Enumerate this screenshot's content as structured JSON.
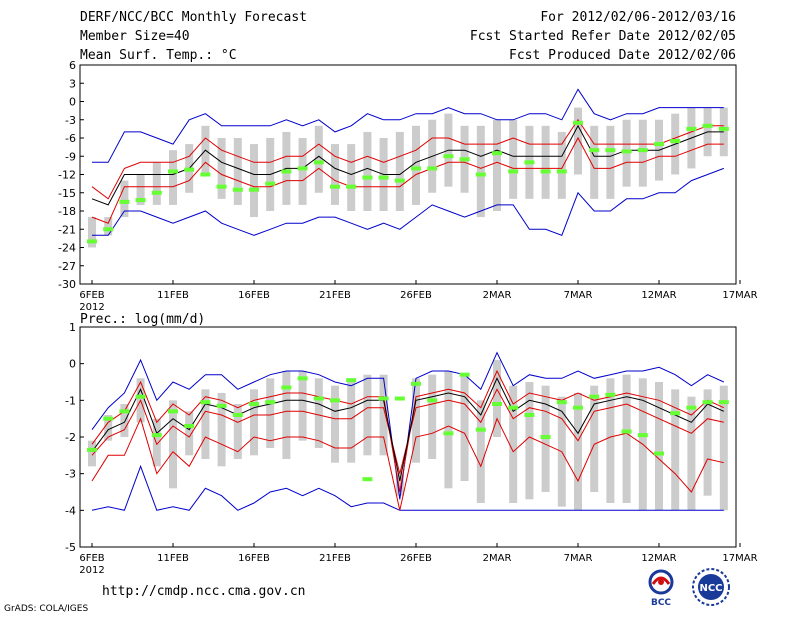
{
  "header": {
    "title": "DERF/NCC/BCC Monthly Forecast",
    "member_size": "Member Size=40",
    "variable": "Mean Surf. Temp.: °C",
    "period": "For 2012/02/06-2012/03/16",
    "started": "Fcst Started Refer Date 2012/02/05",
    "produced": "Fcst Produced Date 2012/02/06"
  },
  "footer": {
    "url": "http://cmdp.ncc.cma.gov.cn",
    "credit": "GrADS: COLA/IGES",
    "logo_bcc": "BCC",
    "logo_ncc": "NCC"
  },
  "colors": {
    "max_min": "#0000cc",
    "spread": "#e00000",
    "mean": "#000000",
    "observed": "#66ff33",
    "box": "#cccccc"
  },
  "chart_data": [
    {
      "type": "line",
      "title": "Mean Surf. Temp.: °C",
      "ylim": [
        -30,
        6
      ],
      "yticks": [
        -30,
        -27,
        -24,
        -21,
        -18,
        -15,
        -12,
        -9,
        -6,
        -3,
        0,
        3,
        6
      ],
      "xticks": [
        {
          "day": 0,
          "label": "6FEB",
          "sub": "2012"
        },
        {
          "day": 5,
          "label": "11FEB"
        },
        {
          "day": 10,
          "label": "16FEB"
        },
        {
          "day": 15,
          "label": "21FEB"
        },
        {
          "day": 20,
          "label": "26FEB"
        },
        {
          "day": 25,
          "label": "2MAR"
        },
        {
          "day": 30,
          "label": "7MAR"
        },
        {
          "day": 35,
          "label": "12MAR"
        },
        {
          "day": 40,
          "label": "17MAR"
        }
      ],
      "x": [
        0,
        1,
        2,
        3,
        4,
        5,
        6,
        7,
        8,
        9,
        10,
        11,
        12,
        13,
        14,
        15,
        16,
        17,
        18,
        19,
        20,
        21,
        22,
        23,
        24,
        25,
        26,
        27,
        28,
        29,
        30,
        31,
        32,
        33,
        34,
        35,
        36,
        37,
        38,
        39
      ],
      "series": [
        {
          "name": "max",
          "values": [
            -10,
            -10,
            -5,
            -5,
            -6,
            -7,
            -3,
            -2,
            -4,
            -4,
            -4,
            -4,
            -3,
            -4,
            -3,
            -5,
            -4,
            -2,
            -3,
            -3,
            -2,
            -2,
            -1,
            -2,
            -2,
            -3,
            -3,
            -2,
            -2,
            -3,
            2,
            -2,
            -3,
            -2,
            -2,
            -1,
            -1,
            -1,
            -1,
            -1
          ]
        },
        {
          "name": "upper",
          "values": [
            -14,
            -16,
            -11,
            -10,
            -10,
            -10,
            -9,
            -6,
            -8,
            -9,
            -10,
            -10,
            -9,
            -9,
            -7,
            -9,
            -10,
            -9,
            -10,
            -9,
            -8,
            -6,
            -6,
            -7,
            -7,
            -7,
            -6,
            -7,
            -7,
            -7,
            -3,
            -7,
            -7,
            -7,
            -7,
            -7,
            -6,
            -5,
            -4,
            -4
          ]
        },
        {
          "name": "mean",
          "values": [
            -16,
            -17,
            -12,
            -12,
            -12,
            -12,
            -11,
            -8,
            -10,
            -11,
            -12,
            -12,
            -11,
            -11,
            -9,
            -11,
            -12,
            -11,
            -12,
            -12,
            -10,
            -9,
            -8,
            -8,
            -9,
            -8,
            -9,
            -9,
            -9,
            -9,
            -4,
            -9,
            -9,
            -8,
            -8,
            -8,
            -7,
            -6,
            -5,
            -5
          ]
        },
        {
          "name": "lower",
          "values": [
            -19,
            -20,
            -14,
            -14,
            -14,
            -14,
            -13,
            -10,
            -12,
            -13,
            -14,
            -14,
            -13,
            -13,
            -11,
            -13,
            -14,
            -14,
            -14,
            -14,
            -12,
            -11,
            -10,
            -10,
            -11,
            -10,
            -11,
            -11,
            -11,
            -11,
            -6,
            -11,
            -11,
            -10,
            -10,
            -9,
            -9,
            -8,
            -7,
            -7
          ]
        },
        {
          "name": "min",
          "values": [
            -22,
            -22,
            -18,
            -18,
            -19,
            -20,
            -19,
            -18,
            -20,
            -21,
            -22,
            -21,
            -20,
            -20,
            -19,
            -19,
            -20,
            -21,
            -20,
            -21,
            -19,
            -17,
            -18,
            -19,
            -18,
            -17,
            -17,
            -21,
            -21,
            -22,
            -15,
            -18,
            -18,
            -16,
            -16,
            -15,
            -15,
            -13,
            -12,
            -11
          ]
        },
        {
          "name": "box_top",
          "values": [
            -19,
            -19,
            -13,
            -12,
            -10,
            -8,
            -7,
            -4,
            -6,
            -6,
            -7,
            -6,
            -5,
            -6,
            -4,
            -7,
            -7,
            -5,
            -6,
            -5,
            -4,
            -3,
            -2,
            -4,
            -4,
            -3,
            -3,
            -4,
            -4,
            -5,
            -1,
            -4,
            -4,
            -3,
            -3,
            -3,
            -2,
            -1,
            -1,
            -1
          ]
        },
        {
          "name": "box_bottom",
          "values": [
            -24,
            -22,
            -19,
            -17,
            -17,
            -17,
            -15,
            -12,
            -16,
            -17,
            -19,
            -18,
            -17,
            -17,
            -15,
            -17,
            -18,
            -18,
            -18,
            -18,
            -17,
            -15,
            -14,
            -15,
            -19,
            -18,
            -16,
            -16,
            -16,
            -16,
            -12,
            -16,
            -16,
            -14,
            -14,
            -13,
            -12,
            -11,
            -9,
            -9
          ]
        },
        {
          "name": "observed",
          "values": [
            -23,
            -21,
            -16.5,
            -16.2,
            -15,
            -11.5,
            -11.2,
            -12,
            -14,
            -14.5,
            -14.5,
            -13.5,
            -11.5,
            -11,
            -10,
            -14,
            -14,
            -12.5,
            -12.5,
            -13,
            -11,
            -11,
            -9,
            -9.5,
            -12,
            -8.5,
            -11.5,
            -10,
            -11.5,
            -11.5,
            -3.5,
            -8,
            -8,
            -8.2,
            -8,
            -7,
            -6.5,
            -4.5,
            -4,
            -4.5
          ]
        }
      ]
    },
    {
      "type": "line",
      "title": "Prec.: log(mm/d)",
      "ylim": [
        -5,
        1
      ],
      "yticks": [
        -5,
        -4,
        -3,
        -2,
        -1,
        0,
        1
      ],
      "xticks": [
        {
          "day": 0,
          "label": "6FEB",
          "sub": "2012"
        },
        {
          "day": 5,
          "label": "11FEB"
        },
        {
          "day": 10,
          "label": "16FEB"
        },
        {
          "day": 15,
          "label": "21FEB"
        },
        {
          "day": 20,
          "label": "26FEB"
        },
        {
          "day": 25,
          "label": "2MAR"
        },
        {
          "day": 30,
          "label": "7MAR"
        },
        {
          "day": 35,
          "label": "12MAR"
        },
        {
          "day": 40,
          "label": "17MAR"
        }
      ],
      "x": [
        0,
        1,
        2,
        3,
        4,
        5,
        6,
        7,
        8,
        9,
        10,
        11,
        12,
        13,
        14,
        15,
        16,
        17,
        18,
        19,
        20,
        21,
        22,
        23,
        24,
        25,
        26,
        27,
        28,
        29,
        30,
        31,
        32,
        33,
        34,
        35,
        36,
        37,
        38,
        39
      ],
      "series": [
        {
          "name": "max",
          "values": [
            -1.8,
            -1.2,
            -0.8,
            0.1,
            -1.0,
            -0.5,
            -0.7,
            -0.3,
            -0.3,
            -0.7,
            -0.5,
            -0.3,
            -0.2,
            -0.2,
            -0.3,
            -0.5,
            -0.6,
            -0.4,
            -0.4,
            -3.7,
            -0.4,
            -0.2,
            -0.2,
            -0.3,
            -0.7,
            0.3,
            -0.6,
            -0.3,
            -0.4,
            -0.4,
            -0.2,
            -0.4,
            -0.3,
            -0.2,
            -0.2,
            -0.1,
            -0.3,
            -0.6,
            -0.3,
            -0.5
          ]
        },
        {
          "name": "upper",
          "values": [
            -2.2,
            -1.6,
            -1.3,
            -0.5,
            -1.6,
            -1.1,
            -1.4,
            -0.9,
            -1.0,
            -1.2,
            -1.0,
            -0.9,
            -0.8,
            -0.8,
            -0.9,
            -1.0,
            -1.1,
            -0.9,
            -0.9,
            -3.5,
            -0.9,
            -0.8,
            -0.7,
            -0.8,
            -1.2,
            -0.2,
            -1.1,
            -0.8,
            -0.9,
            -1.0,
            -0.8,
            -1.0,
            -0.9,
            -0.8,
            -0.9,
            -1.0,
            -1.2,
            -1.4,
            -1.0,
            -1.2
          ]
        },
        {
          "name": "mean",
          "values": [
            -2.4,
            -1.8,
            -1.6,
            -0.7,
            -1.9,
            -1.5,
            -1.8,
            -1.1,
            -1.2,
            -1.4,
            -1.2,
            -1.1,
            -1.0,
            -1.0,
            -1.1,
            -1.3,
            -1.2,
            -1.0,
            -1.0,
            -3.2,
            -1.0,
            -0.9,
            -0.8,
            -0.9,
            -1.4,
            -0.4,
            -1.3,
            -1.0,
            -1.1,
            -1.3,
            -1.9,
            -1.1,
            -1.0,
            -0.9,
            -1.0,
            -1.2,
            -1.4,
            -1.6,
            -1.1,
            -1.3
          ]
        },
        {
          "name": "lower",
          "values": [
            -2.5,
            -2.0,
            -1.8,
            -1.0,
            -2.2,
            -1.7,
            -2.0,
            -1.3,
            -1.4,
            -1.6,
            -1.4,
            -1.4,
            -1.3,
            -1.3,
            -1.4,
            -1.5,
            -1.5,
            -1.2,
            -1.2,
            -3.0,
            -1.2,
            -1.1,
            -1.0,
            -1.1,
            -1.6,
            -0.7,
            -1.5,
            -1.2,
            -1.3,
            -1.5,
            -2.1,
            -1.3,
            -1.2,
            -1.1,
            -1.3,
            -1.5,
            -1.7,
            -1.9,
            -1.5,
            -1.6
          ]
        },
        {
          "name": "lowest",
          "values": [
            -3.2,
            -2.5,
            -2.5,
            -1.5,
            -3.0,
            -2.4,
            -2.8,
            -2.0,
            -2.2,
            -2.4,
            -2.0,
            -2.1,
            -2.0,
            -2.0,
            -2.1,
            -2.3,
            -2.3,
            -2.0,
            -2.0,
            -4.0,
            -2.0,
            -1.9,
            -1.7,
            -1.9,
            -2.8,
            -1.5,
            -2.4,
            -2.0,
            -2.2,
            -2.4,
            -3.2,
            -2.2,
            -2.0,
            -1.9,
            -2.2,
            -2.6,
            -3.0,
            -3.5,
            -2.6,
            -2.7
          ]
        },
        {
          "name": "min",
          "values": [
            -4.0,
            -3.9,
            -4.0,
            -2.8,
            -4.0,
            -3.9,
            -4.0,
            -3.4,
            -3.6,
            -4.0,
            -3.8,
            -3.5,
            -3.4,
            -3.6,
            -3.4,
            -3.6,
            -3.9,
            -3.8,
            -3.8,
            -4.0,
            -4.0,
            -4.0,
            -4.0,
            -4.0,
            -4.0,
            -4.0,
            -4.0,
            -4.0,
            -4.0,
            -4.0,
            -4.0,
            -4.0,
            -4.0,
            -4.0,
            -4.0,
            -4.0,
            -4.0,
            -4.0,
            -4.0,
            -4.0
          ]
        },
        {
          "name": "box_top",
          "values": [
            -2.1,
            -1.4,
            -1.1,
            -0.4,
            -1.5,
            -1.0,
            -1.3,
            -0.7,
            -0.8,
            -1.1,
            -0.7,
            -0.4,
            -0.2,
            -0.2,
            -0.4,
            -0.6,
            -0.5,
            -0.3,
            -0.3,
            -3.0,
            -0.4,
            -0.3,
            -0.2,
            -0.3,
            -1.0,
            0.1,
            -0.6,
            -0.5,
            -0.6,
            -0.9,
            -0.8,
            -0.6,
            -0.4,
            -0.3,
            -0.4,
            -0.5,
            -0.7,
            -0.9,
            -0.7,
            -0.6
          ]
        },
        {
          "name": "box_bottom",
          "values": [
            -2.8,
            -2.1,
            -2.0,
            -1.6,
            -2.8,
            -3.4,
            -2.5,
            -2.6,
            -2.8,
            -2.6,
            -2.5,
            -2.3,
            -2.6,
            -2.1,
            -2.3,
            -2.7,
            -2.7,
            -2.5,
            -2.5,
            -3.6,
            -2.7,
            -2.6,
            -3.4,
            -3.2,
            -3.8,
            -2.0,
            -3.8,
            -3.7,
            -3.5,
            -3.9,
            -4.0,
            -3.5,
            -3.8,
            -3.8,
            -4.0,
            -4.0,
            -4.0,
            -4.0,
            -3.6,
            -4.0
          ]
        },
        {
          "name": "observed",
          "values": [
            -2.35,
            -1.5,
            -1.3,
            -0.9,
            -1.95,
            -1.3,
            -1.7,
            -1.05,
            -1.15,
            -1.4,
            -1.1,
            -1.05,
            -0.65,
            -0.4,
            -0.95,
            -1.0,
            -0.45,
            -3.15,
            -0.95,
            -0.95,
            -0.55,
            -1.0,
            -1.9,
            -0.3,
            -1.8,
            -1.1,
            -1.2,
            -1.4,
            -2.0,
            -1.05,
            -1.2,
            -0.9,
            -0.85,
            -1.85,
            -1.95,
            -2.45,
            -1.35,
            -1.2,
            -1.05,
            -1.05
          ]
        }
      ]
    }
  ]
}
